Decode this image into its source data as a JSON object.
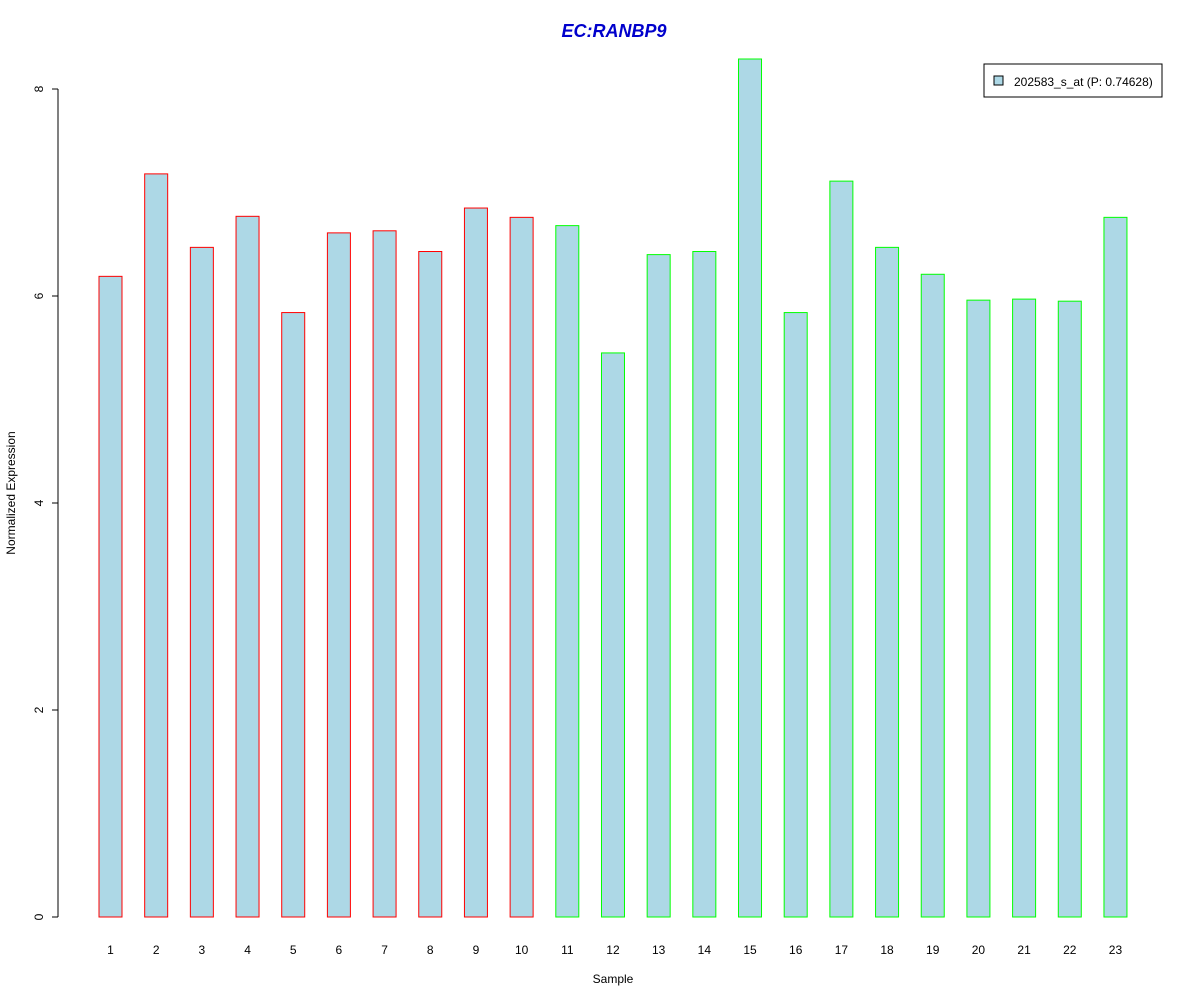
{
  "chart_data": {
    "type": "bar",
    "title": "EC:RANBP9",
    "xlabel": "Sample",
    "ylabel": "Normalized Expression",
    "categories": [
      "1",
      "2",
      "3",
      "4",
      "5",
      "6",
      "7",
      "8",
      "9",
      "10",
      "11",
      "12",
      "13",
      "14",
      "15",
      "16",
      "17",
      "18",
      "19",
      "20",
      "21",
      "22",
      "23"
    ],
    "series": [
      {
        "name": "202583_s_at (P: 0.74628)",
        "values": [
          6.19,
          7.18,
          6.47,
          6.77,
          5.84,
          6.61,
          6.63,
          6.43,
          6.85,
          6.76,
          6.68,
          5.45,
          6.4,
          6.43,
          8.29,
          5.84,
          7.11,
          6.47,
          6.21,
          5.96,
          5.97,
          5.95,
          6.76
        ]
      }
    ],
    "groups": [
      {
        "from": 1,
        "to": 10,
        "border_color": "#ff0000"
      },
      {
        "from": 11,
        "to": 23,
        "border_color": "#00ff00"
      }
    ],
    "yticks": [
      0,
      2,
      4,
      6,
      8
    ],
    "ylim": [
      0,
      8.29
    ],
    "grid": false,
    "legend_position": "top-right",
    "colors": {
      "bar_fill": "#add8e6",
      "title": "#0000cc"
    }
  }
}
